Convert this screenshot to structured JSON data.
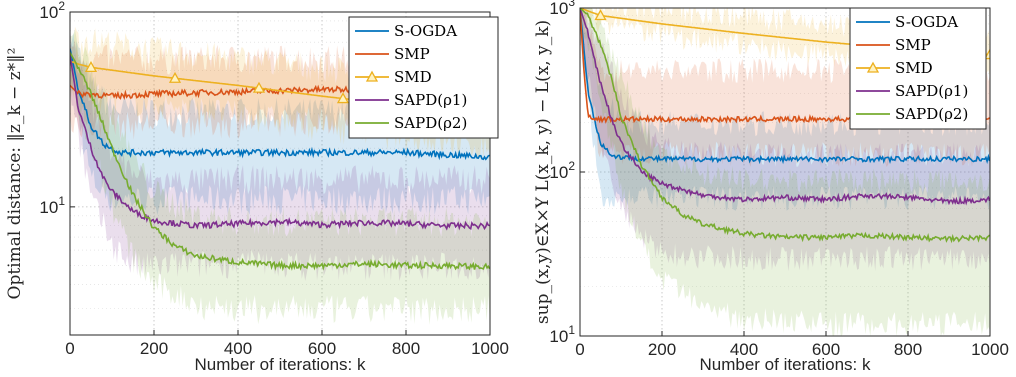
{
  "colors": {
    "S-OGDA": "#0072BD",
    "SMP": "#D95319",
    "SMD": "#EDB120",
    "SAPD1": "#7E2F8E",
    "SAPD2": "#77AC30"
  },
  "chart_data": [
    {
      "type": "line",
      "y_scale": "log",
      "xlabel": "Number of iterations: k",
      "ylabel": "Optimal distance: ‖z_k − z*‖²",
      "xlim": [
        0,
        1000
      ],
      "ylim": [
        2.2,
        100
      ],
      "x_ticks": [
        "0",
        "200",
        "400",
        "600",
        "800",
        "1000"
      ],
      "y_ticks": [
        "10^1",
        "10^2"
      ],
      "grid": true,
      "legend_position": "top-right",
      "series": [
        {
          "name": "S-OGDA",
          "color_key": "S-OGDA",
          "x": [
            0,
            20,
            50,
            80,
            120,
            200,
            400,
            600,
            800,
            1000
          ],
          "y": [
            65,
            40,
            26,
            21,
            19,
            19,
            19,
            19,
            19,
            18
          ],
          "band": {
            "x": [
              0,
              50,
              100,
              200,
              400,
              600,
              800,
              1000
            ],
            "lower": [
              48,
              14,
              11,
              11,
              11,
              11,
              11,
              11
            ],
            "upper": [
              80,
              42,
              32,
              31,
              31,
              31,
              31,
              31
            ]
          }
        },
        {
          "name": "SMP",
          "color_key": "SMP",
          "x": [
            0,
            20,
            50,
            100,
            200,
            400,
            600,
            800,
            1000
          ],
          "y": [
            42,
            38,
            38,
            37,
            38,
            39,
            40,
            40,
            40
          ],
          "band": {
            "x": [
              0,
              50,
              100,
              200,
              400,
              600,
              800,
              1000
            ],
            "lower": [
              28,
              26,
              26,
              27,
              27,
              28,
              28,
              28
            ],
            "upper": [
              60,
              58,
              58,
              57,
              58,
              58,
              58,
              58
            ]
          }
        },
        {
          "name": "SMD",
          "color_key": "SMD",
          "x": [
            0,
            20,
            50,
            200,
            400,
            600,
            800,
            1000
          ],
          "y": [
            56,
            54,
            52,
            47,
            42,
            37,
            33,
            30
          ],
          "markers_x": [
            50,
            250,
            450,
            650,
            850
          ],
          "band": {
            "x": [
              0,
              200,
              400,
              600,
              800,
              1000
            ],
            "lower": [
              38,
              34,
              30,
              26,
              23,
              20
            ],
            "upper": [
              75,
              64,
              58,
              52,
              47,
              44
            ]
          }
        },
        {
          "name": "SAPD(ρ1)",
          "color_key": "SAPD1",
          "x": [
            0,
            20,
            50,
            80,
            100,
            150,
            200,
            300,
            400,
            500,
            600,
            700,
            800,
            900,
            1000
          ],
          "y": [
            60,
            32,
            20,
            14,
            12,
            9.5,
            8.5,
            8.0,
            8.2,
            8.4,
            8.1,
            8.3,
            8.2,
            8.0,
            8.0
          ],
          "band": {
            "x": [
              0,
              50,
              100,
              150,
              200,
              400,
              600,
              800,
              1000
            ],
            "lower": [
              40,
              11,
              6.5,
              5.0,
              5.0,
              5.2,
              5.0,
              5.0,
              5.0
            ],
            "upper": [
              80,
              34,
              20,
              15,
              13.5,
              14,
              14,
              14,
              14
            ]
          }
        },
        {
          "name": "SAPD(ρ2)",
          "color_key": "SAPD2",
          "x": [
            0,
            20,
            50,
            80,
            100,
            150,
            200,
            250,
            300,
            400,
            500,
            600,
            700,
            800,
            900,
            1000
          ],
          "y": [
            62,
            52,
            38,
            26,
            20,
            11.5,
            7.8,
            6.3,
            5.6,
            5.2,
            5.0,
            5.0,
            5.1,
            5.0,
            5.0,
            4.9
          ],
          "band": {
            "x": [
              0,
              50,
              100,
              150,
              200,
              300,
              400,
              600,
              800,
              1000
            ],
            "lower": [
              45,
              22,
              10,
              5.5,
              4.0,
              3.2,
              3.0,
              3.0,
              3.0,
              3.0
            ],
            "upper": [
              80,
              50,
              30,
              18,
              12,
              9,
              8.5,
              8.5,
              8.5,
              8.5
            ]
          }
        }
      ]
    },
    {
      "type": "line",
      "y_scale": "log",
      "xlabel": "Number of iterations: k",
      "ylabel": "sup_(x,y)∈X×Y L(x_k, y) − L(x, y_k)",
      "xlim": [
        0,
        1000
      ],
      "ylim": [
        10,
        1000
      ],
      "x_ticks": [
        "0",
        "200",
        "400",
        "600",
        "800",
        "1000"
      ],
      "y_ticks": [
        "10^1",
        "10^2",
        "10^3"
      ],
      "grid": true,
      "legend_position": "top-right",
      "series": [
        {
          "name": "S-OGDA",
          "color_key": "S-OGDA",
          "x": [
            0,
            20,
            50,
            80,
            120,
            200,
            400,
            600,
            800,
            1000
          ],
          "y": [
            1000,
            300,
            150,
            125,
            122,
            120,
            120,
            120,
            120,
            120
          ],
          "band": {
            "x": [
              0,
              50,
              100,
              200,
              400,
              600,
              800,
              1000
            ],
            "lower": [
              600,
              75,
              70,
              70,
              70,
              70,
              70,
              70
            ],
            "upper": [
              1050,
              320,
              210,
              200,
              200,
              200,
              200,
              200
            ]
          }
        },
        {
          "name": "SMP",
          "color_key": "SMP",
          "x": [
            0,
            10,
            20,
            40,
            100,
            200,
            400,
            600,
            800,
            1000
          ],
          "y": [
            1000,
            400,
            220,
            210,
            210,
            210,
            210,
            210,
            210,
            210
          ],
          "band": {
            "x": [
              0,
              50,
              100,
              200,
              400,
              600,
              800,
              1000
            ],
            "lower": [
              600,
              130,
              130,
              130,
              130,
              130,
              130,
              130
            ],
            "upper": [
              1050,
              420,
              420,
              420,
              420,
              420,
              420,
              420
            ]
          }
        },
        {
          "name": "SMD",
          "color_key": "SMD",
          "x": [
            0,
            50,
            200,
            400,
            600,
            800,
            1000
          ],
          "y": [
            1000,
            900,
            800,
            700,
            620,
            560,
            520
          ],
          "markers_x": [
            50,
            1000
          ],
          "band": {
            "x": [
              0,
              200,
              400,
              600,
              800,
              1000
            ],
            "lower": [
              900,
              700,
              600,
              520,
              470,
              430
            ],
            "upper": [
              1050,
              1000,
              900,
              800,
              740,
              680
            ]
          }
        },
        {
          "name": "SAPD(ρ1)",
          "color_key": "SAPD1",
          "x": [
            0,
            20,
            50,
            80,
            100,
            150,
            200,
            300,
            400,
            500,
            600,
            700,
            800,
            900,
            1000
          ],
          "y": [
            1000,
            700,
            350,
            200,
            150,
            100,
            85,
            72,
            68,
            70,
            68,
            72,
            70,
            66,
            68
          ],
          "band": {
            "x": [
              0,
              50,
              100,
              150,
              200,
              400,
              600,
              800,
              1000
            ],
            "lower": [
              700,
              150,
              60,
              40,
              32,
              30,
              30,
              30,
              30
            ],
            "upper": [
              1050,
              600,
              300,
              180,
              140,
              130,
              130,
              130,
              130
            ]
          }
        },
        {
          "name": "SAPD(ρ2)",
          "color_key": "SAPD2",
          "x": [
            0,
            20,
            50,
            80,
            100,
            150,
            200,
            250,
            300,
            400,
            500,
            600,
            700,
            800,
            900,
            1000
          ],
          "y": [
            1000,
            900,
            600,
            350,
            220,
            110,
            70,
            55,
            48,
            42,
            40,
            40,
            41,
            40,
            39,
            40
          ],
          "band": {
            "x": [
              0,
              50,
              100,
              150,
              200,
              300,
              400,
              600,
              800,
              1000
            ],
            "lower": [
              900,
              300,
              80,
              35,
              22,
              15,
              13,
              12,
              12,
              12
            ],
            "upper": [
              1050,
              800,
              400,
              200,
              130,
              100,
              90,
              90,
              90,
              90
            ]
          }
        }
      ]
    }
  ]
}
